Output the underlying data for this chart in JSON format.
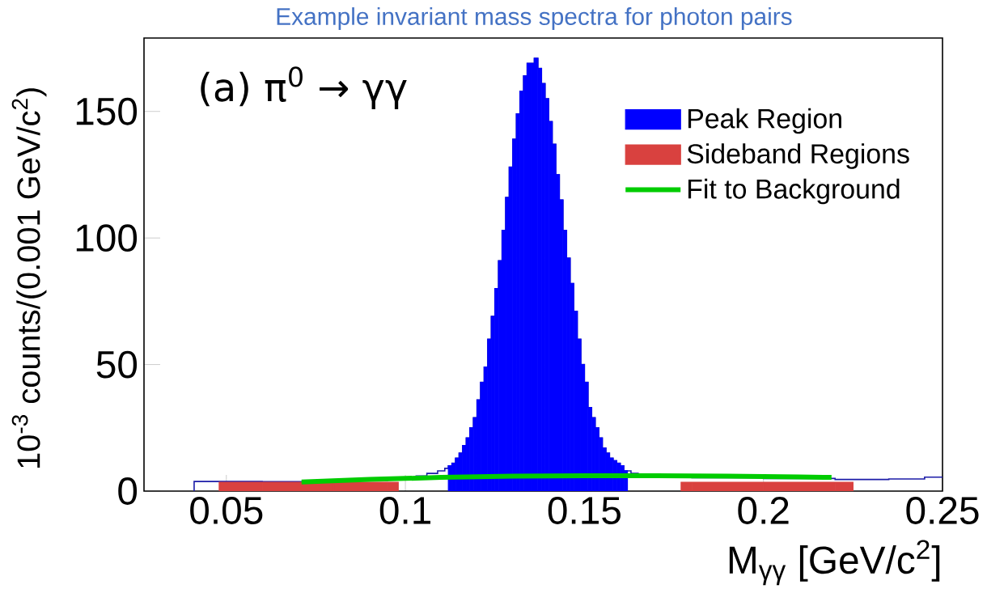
{
  "chart_data": {
    "type": "histogram",
    "title": "Example invariant mass spectra for photon pairs",
    "xlabel": "M$_{γγ}$ [GeV/c$^{2}$]",
    "ylabel": "10$^{-3}$ counts/(0.001 GeV/c$^{2}$)",
    "annotations": [
      "(a) π$^{0}$ → γγ"
    ],
    "xlim": [
      0.027,
      0.25
    ],
    "ylim": [
      0,
      179
    ],
    "xticks": [
      0.05,
      0.1,
      0.15,
      0.2,
      0.25
    ],
    "yticks": [
      0,
      50,
      100,
      150
    ],
    "legend": "top right",
    "bins": [
      0.041,
      0.048,
      0.06,
      0.08,
      0.095,
      0.098,
      0.1,
      0.103,
      0.106,
      0.107,
      0.108,
      0.109,
      0.11,
      0.111,
      0.112,
      0.113,
      0.114,
      0.115,
      0.116,
      0.117,
      0.118,
      0.119,
      0.12,
      0.121,
      0.122,
      0.123,
      0.124,
      0.125,
      0.126,
      0.127,
      0.128,
      0.129,
      0.13,
      0.131,
      0.132,
      0.133,
      0.134,
      0.135,
      0.136,
      0.137,
      0.138,
      0.139,
      0.14,
      0.141,
      0.142,
      0.143,
      0.144,
      0.145,
      0.146,
      0.147,
      0.148,
      0.149,
      0.15,
      0.151,
      0.152,
      0.153,
      0.154,
      0.155,
      0.156,
      0.157,
      0.158,
      0.159,
      0.16,
      0.161,
      0.162,
      0.163,
      0.164,
      0.165,
      0.166,
      0.17,
      0.177,
      0.18,
      0.2,
      0.22,
      0.225,
      0.235,
      0.245,
      0.25
    ],
    "series": [
      {
        "color": "#1c1ca8",
        "values": [
          3.8,
          3.8,
          3.7,
          4.2,
          5,
          5,
          5.5,
          6,
          7,
          7,
          7,
          8,
          8,
          9,
          10,
          11,
          13,
          15,
          18,
          21,
          25,
          29,
          36,
          43,
          49,
          60,
          69,
          80,
          91,
          103,
          116,
          128,
          139,
          149,
          158,
          164,
          169,
          169,
          171,
          167,
          161,
          155,
          146,
          137,
          125,
          115,
          103,
          92,
          82,
          71,
          60,
          50,
          43,
          33,
          29,
          25,
          21,
          17,
          15,
          13,
          12,
          11,
          10,
          8,
          8,
          7,
          7,
          6,
          6,
          5.8,
          5.8,
          5.3,
          5,
          4.6,
          4.6,
          4.8,
          5.5
        ]
      },
      {
        "name": "Peak Region",
        "color": "#0000ff",
        "values": [
          null,
          null,
          null,
          null,
          null,
          null,
          null,
          null,
          null,
          null,
          null,
          null,
          null,
          null,
          10,
          11,
          13,
          15,
          18,
          21,
          25,
          29,
          36,
          43,
          49,
          60,
          69,
          80,
          91,
          103,
          116,
          128,
          139,
          149,
          158,
          164,
          169,
          169,
          171,
          167,
          161,
          155,
          146,
          137,
          125,
          115,
          103,
          92,
          82,
          71,
          60,
          50,
          43,
          33,
          29,
          25,
          21,
          17,
          15,
          13,
          12,
          11,
          10,
          8,
          null,
          null,
          null,
          null,
          null,
          null,
          null,
          null,
          null,
          null,
          null,
          null,
          null
        ]
      },
      {
        "name": "Sideband Regions",
        "color": "#d9413f",
        "values": [
          null,
          3.5,
          3.5,
          3.5,
          3.5,
          null,
          null,
          null,
          null,
          null,
          null,
          null,
          null,
          null,
          null,
          null,
          null,
          null,
          null,
          null,
          null,
          null,
          null,
          null,
          null,
          null,
          null,
          null,
          null,
          null,
          null,
          null,
          null,
          null,
          null,
          null,
          null,
          null,
          null,
          null,
          null,
          null,
          null,
          null,
          null,
          null,
          null,
          null,
          null,
          null,
          null,
          null,
          null,
          null,
          null,
          null,
          null,
          null,
          null,
          null,
          null,
          null,
          null,
          null,
          null,
          null,
          null,
          null,
          null,
          null,
          3.5,
          3.5,
          3.5,
          3.5,
          null,
          null,
          null
        ]
      },
      {
        "name": "Fit to Background",
        "type": "line",
        "color": "#00cc00",
        "x": [
          0.071,
          0.09,
          0.11,
          0.13,
          0.15,
          0.17,
          0.19,
          0.21,
          0.219
        ],
        "values": [
          3.6,
          4.6,
          5.4,
          5.9,
          6.1,
          6.1,
          5.9,
          5.6,
          5.4
        ]
      }
    ]
  }
}
